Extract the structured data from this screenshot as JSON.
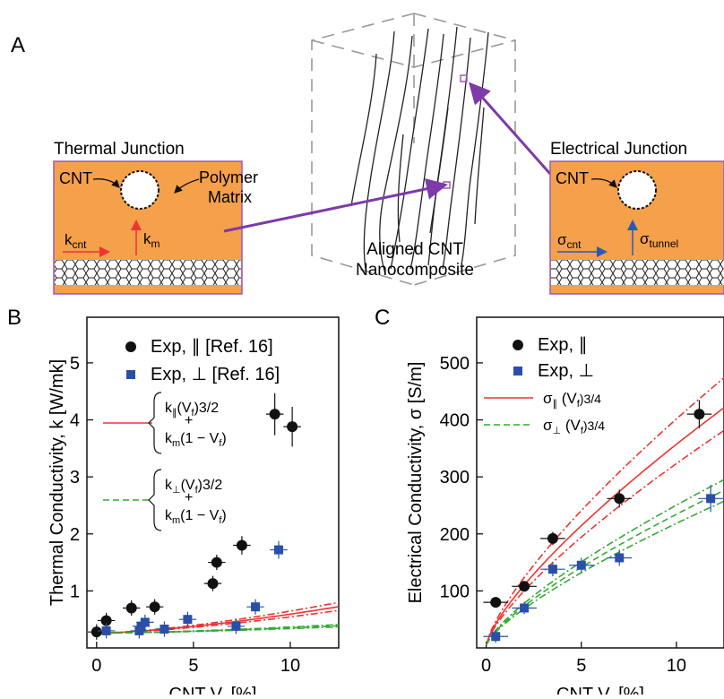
{
  "panel_a": {
    "label": "A",
    "thermal_junction": {
      "title": "Thermal Junction",
      "cnt": "CNT",
      "matrix_line1": "Polymer",
      "matrix_line2": "Matrix",
      "k_cnt": "k",
      "k_cnt_sub": "cnt",
      "k_m": "k",
      "k_m_sub": "m"
    },
    "composite": {
      "line1": "Aligned CNT",
      "line2": "Nanocomposite"
    },
    "electrical_junction": {
      "title": "Electrical Junction",
      "cnt": "CNT",
      "sigma_cnt": "σ",
      "sigma_cnt_sub": "cnt",
      "sigma_tunnel": "σ",
      "sigma_tunnel_sub": "tunnel"
    },
    "colors": {
      "matrix": "#f5a04a",
      "border": "#9b59b6",
      "arrow_purple": "#7d3aa8",
      "arrow_red": "#e33",
      "arrow_blue": "#2a58b8"
    }
  },
  "chart_data": [
    {
      "panel": "B",
      "type": "scatter",
      "xlabel": "CNT V",
      "xlabel_sub": "f",
      "xlabel_unit": " [%]",
      "ylabel": "Thermal Conductivity, k [W/mk]",
      "xlim": [
        -0.5,
        12.5
      ],
      "ylim": [
        0,
        5.8
      ],
      "xticks": [
        0,
        5,
        10
      ],
      "yticks": [
        1,
        2,
        3,
        4,
        5
      ],
      "series": [
        {
          "name": "Exp, ∥ [Ref. 16]",
          "color": "#111111",
          "marker": "circle",
          "points": [
            [
              0,
              0.28
            ],
            [
              0.5,
              0.48
            ],
            [
              1.8,
              0.7
            ],
            [
              3,
              0.72
            ],
            [
              6,
              1.13
            ],
            [
              6.2,
              1.5
            ],
            [
              7.5,
              1.8
            ],
            [
              9.2,
              4.1
            ],
            [
              10.1,
              3.88
            ]
          ]
        },
        {
          "name": "Exp, ⊥ [Ref. 16]",
          "color": "#2a4fa8",
          "marker": "square",
          "points": [
            [
              0.5,
              0.3
            ],
            [
              2.2,
              0.3
            ],
            [
              2.3,
              0.38
            ],
            [
              2.5,
              0.45
            ],
            [
              3.5,
              0.33
            ],
            [
              4.7,
              0.5
            ],
            [
              7.2,
              0.38
            ],
            [
              8.2,
              0.72
            ],
            [
              9.4,
              1.72
            ]
          ]
        }
      ],
      "legend_formula_1": {
        "a": "k",
        "a_sub": "∥",
        "a_pow": "(V",
        "a_pow_sub": "f",
        "a_pow_exp": ")3/2",
        "plus": "+",
        "b": "k",
        "b_sub": "m",
        "b_rest": "(1 − V",
        "b_rest_sub": "f",
        "b_end": ")"
      },
      "legend_formula_2": {
        "a": "k",
        "a_sub": "⊥",
        "a_pow": "(V",
        "a_pow_sub": "f",
        "a_pow_exp": ")3/2",
        "plus": "+",
        "b": "k",
        "b_sub": "m",
        "b_rest": "(1 − V",
        "b_rest_sub": "f",
        "b_end": ")"
      }
    },
    {
      "panel": "C",
      "type": "scatter",
      "xlabel": "CNT V",
      "xlabel_sub": "f",
      "xlabel_unit": " [%]",
      "ylabel": "Electrical Conductivity, σ [S/m]",
      "xlim": [
        -0.5,
        12.5
      ],
      "ylim": [
        0,
        580
      ],
      "xticks": [
        0,
        5,
        10
      ],
      "yticks": [
        100,
        200,
        300,
        400,
        500
      ],
      "series": [
        {
          "name": "Exp, ∥",
          "color": "#111111",
          "marker": "circle",
          "points": [
            [
              0.5,
              80
            ],
            [
              2,
              108
            ],
            [
              3.5,
              192
            ],
            [
              7,
              262
            ],
            [
              11.2,
              410
            ]
          ]
        },
        {
          "name": "Exp, ⊥",
          "color": "#2a4fa8",
          "marker": "square",
          "points": [
            [
              0.5,
              20
            ],
            [
              2,
              70
            ],
            [
              3.5,
              138
            ],
            [
              5,
              145
            ],
            [
              7,
              158
            ],
            [
              11.8,
              262
            ]
          ]
        }
      ],
      "legend_line_1": {
        "s": "σ",
        "sub": "∥",
        "rest": " (V",
        "rest_sub": "f",
        "exp": ")3/4"
      },
      "legend_line_2": {
        "s": "σ",
        "sub": "⊥",
        "rest": "  (V",
        "rest_sub": "f",
        "exp": ")3/4"
      }
    }
  ]
}
